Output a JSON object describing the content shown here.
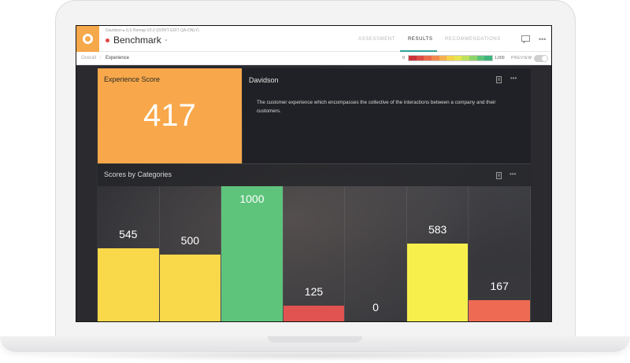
{
  "app": {
    "crumb_path": "Davidson  ▸  ILS Remap V2.0 (DON'T EDIT QA-ONLY)",
    "title": "Benchmark",
    "tabs": [
      {
        "label": "ASSESSMENT",
        "active": false
      },
      {
        "label": "RESULTS",
        "active": true
      },
      {
        "label": "RECOMMENDATIONS",
        "active": false
      }
    ],
    "icons": [
      "comment-icon",
      "more-icon"
    ]
  },
  "subheader": {
    "crumb_overall": "Overall",
    "crumb_separator": "/",
    "crumb_current": "Experience",
    "scale_min": "0",
    "scale_max": "1,000",
    "scale_colors": [
      "#c9343a",
      "#dc4a45",
      "#ea6a4c",
      "#f08a4e",
      "#f6b04e",
      "#f4d347",
      "#e6e54d",
      "#bfe05a",
      "#8fd36a",
      "#5cc47a",
      "#3db47d"
    ],
    "preview_label": "PREVIEW",
    "preview_on": false
  },
  "score_card": {
    "title": "Experience Score",
    "value": "417",
    "color": "#f8a84a"
  },
  "description_card": {
    "title": "Davidson",
    "text": "The customer experience which encompasses the collective of the interactions between a company and their customers."
  },
  "chart_data": {
    "type": "bar",
    "title": "Scores by Categories",
    "ylim": [
      0,
      1000
    ],
    "values": [
      545,
      500,
      1000,
      125,
      0,
      583,
      167
    ],
    "labels": [
      "545",
      "500",
      "1000",
      "125",
      "0",
      "583",
      "167"
    ],
    "colors": [
      "#f9d84a",
      "#f9d84a",
      "#5ec47c",
      "#e05350",
      "#e05350",
      "#f7f04c",
      "#ee6a52"
    ]
  }
}
